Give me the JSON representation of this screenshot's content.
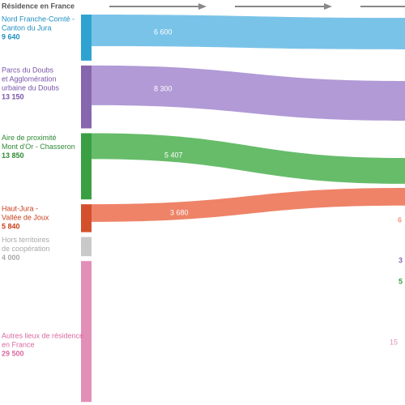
{
  "chart_data": {
    "type": "sankey",
    "title": "Résidence en France",
    "nodes": [
      {
        "name": [
          "Nord Franche-Comté -",
          "Canton du Jura"
        ],
        "value": 9640,
        "value_label": "9 640",
        "color": "#2ea3d2",
        "flow_color": "#6cbce6",
        "text_color": "#1f8fc0"
      },
      {
        "name": [
          "Parcs du Doubs",
          "et Agglomération",
          "urbaine du Doubs"
        ],
        "value": 13150,
        "value_label": "13 150",
        "color": "#8666ad",
        "flow_color": "#a88fd2",
        "text_color": "#7a56a8"
      },
      {
        "name": [
          "Aire de proximité",
          "Mont d'Or - Chasseron"
        ],
        "value": 13850,
        "value_label": "13 850",
        "color": "#3a9f43",
        "flow_color": "#57b55a",
        "text_color": "#2e8a35"
      },
      {
        "name": [
          "Haut-Jura -",
          "Vallée de Joux"
        ],
        "value": 5840,
        "value_label": "5 840",
        "color": "#d4502c",
        "flow_color": "#ec7558",
        "text_color": "#c9401e"
      },
      {
        "name": [
          "Hors territoires",
          "de coopération"
        ],
        "value": 4000,
        "value_label": "4 000",
        "color": "#c9c9c9",
        "flow_color": "#dcdcdc",
        "text_color": "#a9a9a9"
      },
      {
        "name": [
          "Autres lieux de résidence",
          "en France"
        ],
        "value": 29500,
        "value_label": "29 500",
        "color": "#e28fb8",
        "flow_color": "#eab0cc",
        "text_color": "#d96aa2"
      }
    ],
    "flows": [
      {
        "source": 0,
        "value": 6600,
        "value_label": "6 600"
      },
      {
        "source": 1,
        "value": 8300,
        "value_label": "8 300"
      },
      {
        "source": 2,
        "value": 5407,
        "value_label": "5 407"
      },
      {
        "source": 3,
        "value": 3680,
        "value_label": "3 680"
      }
    ],
    "right_labels": [
      {
        "text": "6",
        "color": "#f09a83"
      },
      {
        "text": "3",
        "color": "#8666ad"
      },
      {
        "text": "5",
        "color": "#3a9f43"
      },
      {
        "text": "15",
        "color": "#e28fb8"
      }
    ]
  }
}
